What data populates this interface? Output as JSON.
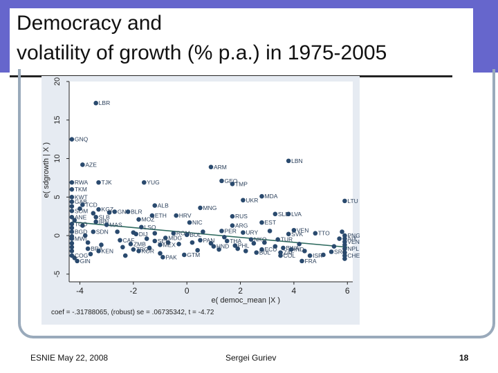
{
  "slide": {
    "title_line1": "Democracy and",
    "title_line2": "volatility of growth (% p.a.) in 1975-2005"
  },
  "footer": {
    "left": "ESNIE May 22, 2008",
    "center": "Sergei Guriev",
    "page": "18"
  },
  "chart_data": {
    "type": "scatter",
    "title": "",
    "xlabel": "e( democ_mean |X )",
    "ylabel": "e( sdgrowth | X )",
    "note": "coef = -.31788065, (robust) se = .06735342, t = -4.72",
    "xlim": [
      -4.4,
      6.2
    ],
    "ylim": [
      -6,
      20
    ],
    "xticks": [
      -4,
      -2,
      0,
      2,
      4,
      6
    ],
    "yticks": [
      -5,
      0,
      5,
      10,
      15,
      20
    ],
    "xtick_labels": [
      "-4",
      "-2",
      "0",
      "2",
      "4",
      "6"
    ],
    "ytick_labels": [
      "-5",
      "0",
      "5",
      "10",
      "15",
      "20"
    ],
    "fit_line": {
      "slope": -0.31788065,
      "intercept": 0.4
    },
    "colors": {
      "point": "#2a4a6e",
      "fit": "#2e6a5e",
      "panel": "#ffffff",
      "bg": "#e6ebf2"
    },
    "labeled_points": [
      {
        "label": "LBR",
        "x": -3.4,
        "y": 17.2
      },
      {
        "label": "GNQ",
        "x": -4.3,
        "y": 12.5
      },
      {
        "label": "AZE",
        "x": -3.9,
        "y": 9.2
      },
      {
        "label": "ARM",
        "x": 0.9,
        "y": 8.9
      },
      {
        "label": "LBN",
        "x": 3.8,
        "y": 9.7
      },
      {
        "label": "RWA",
        "x": -4.3,
        "y": 6.9
      },
      {
        "label": "TJK",
        "x": -3.3,
        "y": 6.9
      },
      {
        "label": "YUG",
        "x": -1.6,
        "y": 6.9
      },
      {
        "label": "GEO",
        "x": 1.3,
        "y": 7.1
      },
      {
        "label": "TMP",
        "x": 1.7,
        "y": 6.7
      },
      {
        "label": "TKM",
        "x": -4.3,
        "y": 6.0
      },
      {
        "label": "KWT",
        "x": -4.3,
        "y": 5.0
      },
      {
        "label": "MDA",
        "x": 2.8,
        "y": 5.1
      },
      {
        "label": "UKR",
        "x": 2.1,
        "y": 4.6
      },
      {
        "label": "LTU",
        "x": 5.9,
        "y": 4.5
      },
      {
        "label": "GAB",
        "x": -4.3,
        "y": 4.4
      },
      {
        "label": "TCD",
        "x": -3.9,
        "y": 4.0
      },
      {
        "label": "ALB",
        "x": -1.2,
        "y": 3.9
      },
      {
        "label": "MNG",
        "x": 0.5,
        "y": 3.6
      },
      {
        "label": "KGZ",
        "x": -3.3,
        "y": 3.4
      },
      {
        "label": "GNB",
        "x": -2.7,
        "y": 3.1
      },
      {
        "label": "BLR",
        "x": -2.2,
        "y": 3.1
      },
      {
        "label": "SOM",
        "x": -4.3,
        "y": 3.2
      },
      {
        "label": "SLE",
        "x": 3.3,
        "y": 2.8
      },
      {
        "label": "LVA",
        "x": 3.8,
        "y": 2.8
      },
      {
        "label": "ETH",
        "x": -1.3,
        "y": 2.6
      },
      {
        "label": "HRV",
        "x": -0.4,
        "y": 2.6
      },
      {
        "label": "RUS",
        "x": 1.7,
        "y": 2.5
      },
      {
        "label": "ANE",
        "x": -4.3,
        "y": 2.4
      },
      {
        "label": "SLB",
        "x": -3.4,
        "y": 2.4
      },
      {
        "label": "MOZ",
        "x": -1.8,
        "y": 2.1
      },
      {
        "label": "IRN",
        "x": -3.4,
        "y": 1.8
      },
      {
        "label": "NIC",
        "x": 0.1,
        "y": 1.7
      },
      {
        "label": "EST",
        "x": 2.8,
        "y": 1.7
      },
      {
        "label": "ARG",
        "x": 1.7,
        "y": 1.3
      },
      {
        "label": "TGO",
        "x": -4.3,
        "y": 1.5
      },
      {
        "label": "MAS",
        "x": -3.0,
        "y": 1.4
      },
      {
        "label": "LSO",
        "x": -1.7,
        "y": 1.1
      },
      {
        "label": "VEN",
        "x": 4.0,
        "y": 0.7
      },
      {
        "label": "TTO",
        "x": 4.8,
        "y": 0.3
      },
      {
        "label": "SVK",
        "x": 3.8,
        "y": 0.2
      },
      {
        "label": "PER",
        "x": 1.3,
        "y": 0.6
      },
      {
        "label": "URY",
        "x": 2.1,
        "y": 0.4
      },
      {
        "label": "SDN",
        "x": -3.5,
        "y": 0.5
      },
      {
        "label": "BGD",
        "x": -4.3,
        "y": 0.5
      },
      {
        "label": "ROM",
        "x": -0.5,
        "y": 0.3
      },
      {
        "label": "BOL",
        "x": 0.0,
        "y": 0.1
      },
      {
        "label": "DIJ",
        "x": -1.9,
        "y": 0.2
      },
      {
        "label": "PNG",
        "x": 5.9,
        "y": 0.0
      },
      {
        "label": "AIY",
        "x": 5.9,
        "y": -0.4
      },
      {
        "label": "VEN",
        "x": 5.9,
        "y": -0.8
      },
      {
        "label": "MWI",
        "x": -4.3,
        "y": -0.4
      },
      {
        "label": "MDG",
        "x": -0.8,
        "y": -0.3
      },
      {
        "label": "PAN",
        "x": 0.5,
        "y": -0.6
      },
      {
        "label": "THA",
        "x": 1.5,
        "y": -0.7
      },
      {
        "label": "NKO",
        "x": 2.4,
        "y": -0.5
      },
      {
        "label": "TUR",
        "x": 3.4,
        "y": -0.5
      },
      {
        "label": "CAF",
        "x": -2.5,
        "y": -0.6
      },
      {
        "label": "SEN",
        "x": -1.2,
        "y": -0.7
      },
      {
        "label": "ZMB",
        "x": -2.1,
        "y": -1.1
      },
      {
        "label": "MEX",
        "x": -1.0,
        "y": -1.2
      },
      {
        "label": "HND",
        "x": 1.0,
        "y": -1.4
      },
      {
        "label": "PHL",
        "x": 1.8,
        "y": -1.3
      },
      {
        "label": "ECU",
        "x": 2.8,
        "y": -1.8
      },
      {
        "label": "BWA",
        "x": 3.6,
        "y": -1.6
      },
      {
        "label": "IND",
        "x": 3.9,
        "y": -1.8
      },
      {
        "label": "NPL",
        "x": 5.9,
        "y": -1.7
      },
      {
        "label": "BRA",
        "x": -3.7,
        "y": -1.7
      },
      {
        "label": "KEN",
        "x": -3.3,
        "y": -2.0
      },
      {
        "label": "TRO",
        "x": -2.0,
        "y": -1.8
      },
      {
        "label": "KOR",
        "x": -1.8,
        "y": -2.0
      },
      {
        "label": "BUL",
        "x": 2.6,
        "y": -2.2
      },
      {
        "label": "ZAF",
        "x": 3.5,
        "y": -2.2
      },
      {
        "label": "SRC",
        "x": 5.4,
        "y": -2.1
      },
      {
        "label": "COG",
        "x": -4.3,
        "y": -2.6
      },
      {
        "label": "GTM",
        "x": -0.1,
        "y": -2.5
      },
      {
        "label": "COL",
        "x": 3.5,
        "y": -2.6
      },
      {
        "label": "ISR",
        "x": 4.6,
        "y": -2.6
      },
      {
        "label": "CHE",
        "x": 5.9,
        "y": -2.6
      },
      {
        "label": "PAK",
        "x": -0.9,
        "y": -2.8
      },
      {
        "label": "FRA",
        "x": 4.3,
        "y": -3.3
      },
      {
        "label": "GIN",
        "x": -4.1,
        "y": -3.3
      }
    ],
    "unlabeled_points": [
      {
        "x": -4.3,
        "y": 3.8
      },
      {
        "x": -4.2,
        "y": 2.0
      },
      {
        "x": -4.3,
        "y": 1.0
      },
      {
        "x": -4.3,
        "y": -0.1
      },
      {
        "x": -4.3,
        "y": -1.0
      },
      {
        "x": -4.3,
        "y": -1.5
      },
      {
        "x": -4.3,
        "y": -2.0
      },
      {
        "x": -4.2,
        "y": -2.9
      },
      {
        "x": -4.0,
        "y": 3.5
      },
      {
        "x": -3.9,
        "y": 1.3
      },
      {
        "x": -3.8,
        "y": 0.0
      },
      {
        "x": -3.7,
        "y": -0.9
      },
      {
        "x": -3.6,
        "y": -2.4
      },
      {
        "x": -3.5,
        "y": 2.9
      },
      {
        "x": -3.2,
        "y": -1.2
      },
      {
        "x": -2.9,
        "y": 3.0
      },
      {
        "x": -2.6,
        "y": 0.5
      },
      {
        "x": -2.4,
        "y": -1.5
      },
      {
        "x": -2.3,
        "y": -2.6
      },
      {
        "x": -2.0,
        "y": 0.4
      },
      {
        "x": -1.5,
        "y": -0.4
      },
      {
        "x": -1.4,
        "y": -1.6
      },
      {
        "x": -1.2,
        "y": 0.3
      },
      {
        "x": -1.0,
        "y": -2.3
      },
      {
        "x": -0.7,
        "y": -0.9
      },
      {
        "x": -0.3,
        "y": -1.1
      },
      {
        "x": 0.2,
        "y": -0.9
      },
      {
        "x": 0.4,
        "y": -1.9
      },
      {
        "x": 0.6,
        "y": 0.5
      },
      {
        "x": 0.9,
        "y": -1.0
      },
      {
        "x": 1.2,
        "y": -1.8
      },
      {
        "x": 1.4,
        "y": -0.2
      },
      {
        "x": 1.9,
        "y": -1.7
      },
      {
        "x": 2.2,
        "y": -2.0
      },
      {
        "x": 2.5,
        "y": -1.0
      },
      {
        "x": 2.9,
        "y": -0.9
      },
      {
        "x": 3.1,
        "y": 0.6
      },
      {
        "x": 3.3,
        "y": -1.4
      },
      {
        "x": 4.2,
        "y": -1.1
      },
      {
        "x": 4.4,
        "y": -2.0
      },
      {
        "x": 5.1,
        "y": -2.5
      },
      {
        "x": 5.5,
        "y": -1.4
      },
      {
        "x": 5.7,
        "y": -0.4
      },
      {
        "x": 5.9,
        "y": -1.2
      },
      {
        "x": 5.9,
        "y": -2.2
      },
      {
        "x": 5.9,
        "y": -3.0
      },
      {
        "x": 5.8,
        "y": 0.5
      }
    ]
  }
}
